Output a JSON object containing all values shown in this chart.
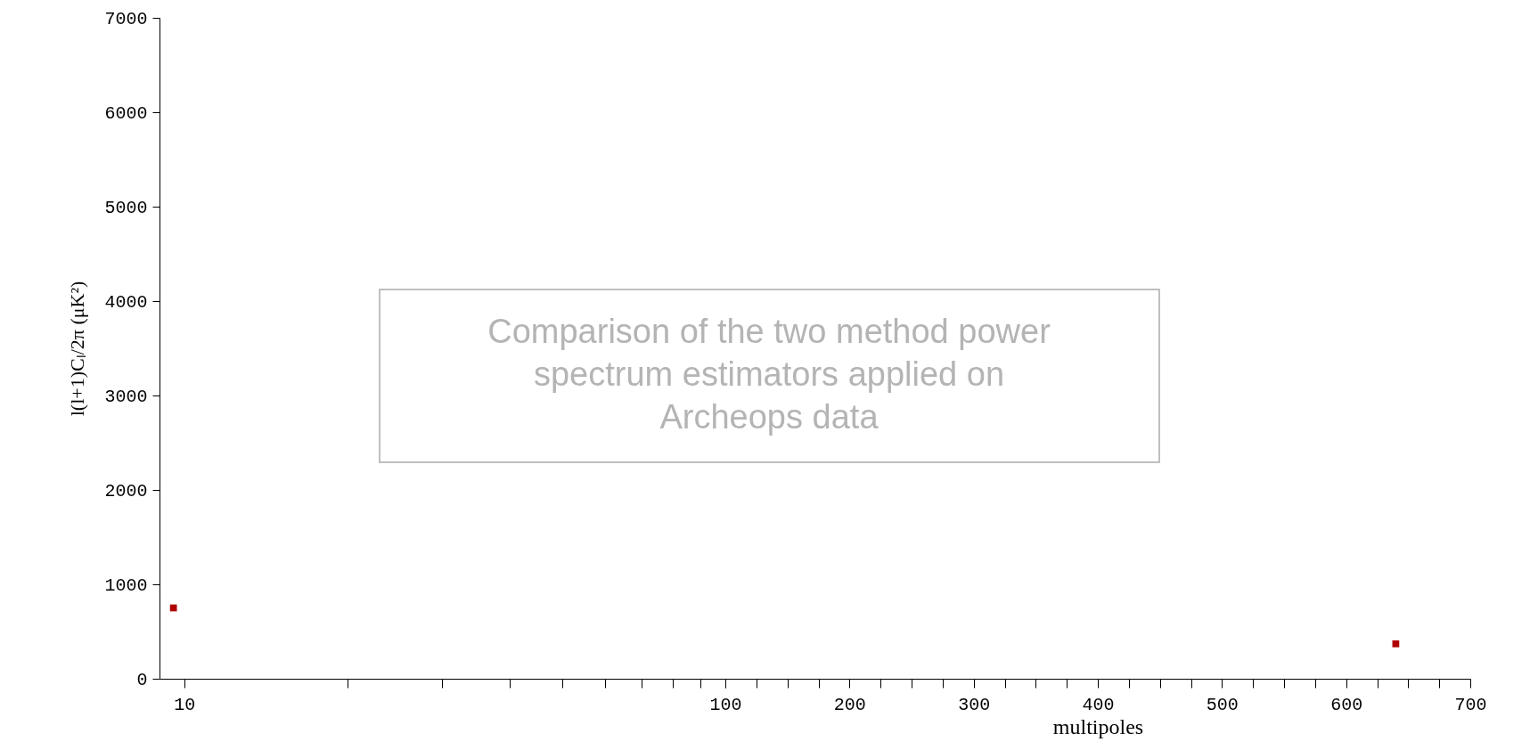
{
  "chart_data": [
    {
      "type": "scatter",
      "ylabel": "l(l+1)Cₗ/2π (μK²)",
      "log": "x",
      "annotations": [
        "Comparison of the two method power spectrum estimators applied on Archeops data"
      ],
      "x": [
        9.55
      ],
      "series": [
        {
          "color": "#b00000",
          "values": [
            750
          ]
        }
      ],
      "marker": "square",
      "xlim": [
        9,
        100
      ],
      "xticks": [
        10,
        {
          "value": 20,
          "label": null
        },
        {
          "value": 30,
          "label": null
        },
        {
          "value": 40,
          "label": null
        },
        {
          "value": 50,
          "label": null
        },
        {
          "value": 60,
          "label": null
        },
        {
          "value": 70,
          "label": null
        },
        {
          "value": 80,
          "label": null
        },
        {
          "value": 90,
          "label": null
        },
        100
      ],
      "ylim": [
        0,
        7000
      ],
      "yticks": [
        0,
        1000,
        2000,
        3000,
        4000,
        5000,
        6000,
        7000
      ]
    },
    {
      "type": "scatter",
      "xlabel": "multipoles",
      "tick_labels": "x",
      "x": [
        640
      ],
      "series": [
        {
          "color": "#b00000",
          "values": [
            370
          ]
        }
      ],
      "marker": "square",
      "xlim": [
        100,
        700
      ],
      "xticks": [
        {
          "value": 100,
          "label": null
        },
        {
          "value": 125,
          "label": null
        },
        {
          "value": 150,
          "label": null
        },
        {
          "value": 175,
          "label": null
        },
        200,
        {
          "value": 225,
          "label": null
        },
        {
          "value": 250,
          "label": null
        },
        {
          "value": 275,
          "label": null
        },
        300,
        {
          "value": 325,
          "label": null
        },
        {
          "value": 350,
          "label": null
        },
        {
          "value": 375,
          "label": null
        },
        400,
        {
          "value": 425,
          "label": null
        },
        {
          "value": 450,
          "label": null
        },
        {
          "value": 475,
          "label": null
        },
        500,
        {
          "value": 525,
          "label": null
        },
        {
          "value": 550,
          "label": null
        },
        {
          "value": 575,
          "label": null
        },
        600,
        {
          "value": 625,
          "label": null
        },
        {
          "value": 650,
          "label": null
        },
        {
          "value": 675,
          "label": null
        },
        700
      ],
      "ylim": [
        0,
        7000
      ]
    }
  ]
}
